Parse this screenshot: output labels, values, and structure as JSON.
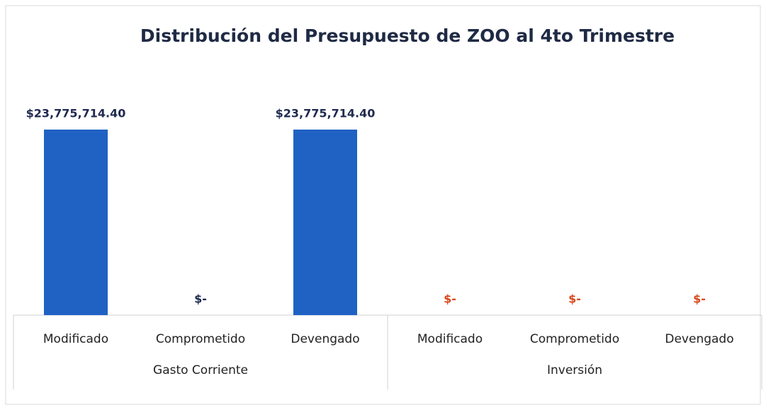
{
  "chart_data": {
    "type": "bar",
    "title": "Distribución del Presupuesto de ZOO al 4to Trimestre",
    "series": [
      {
        "name": "Gasto Corriente",
        "color": "#1f62c4",
        "label_color": "#1f2a4f",
        "categories": [
          "Modificado",
          "Comprometido",
          "Devengado"
        ],
        "values": [
          23775714.4,
          0,
          23775714.4
        ],
        "value_labels": [
          "$23,775,714.40",
          "$-",
          "$23,775,714.40"
        ]
      },
      {
        "name": "Inversión",
        "color": "#e0572a",
        "label_color": "#d9481c",
        "categories": [
          "Modificado",
          "Comprometido",
          "Devengado"
        ],
        "values": [
          0,
          0,
          0
        ],
        "value_labels": [
          "$-",
          "$-",
          "$-"
        ]
      }
    ]
  }
}
